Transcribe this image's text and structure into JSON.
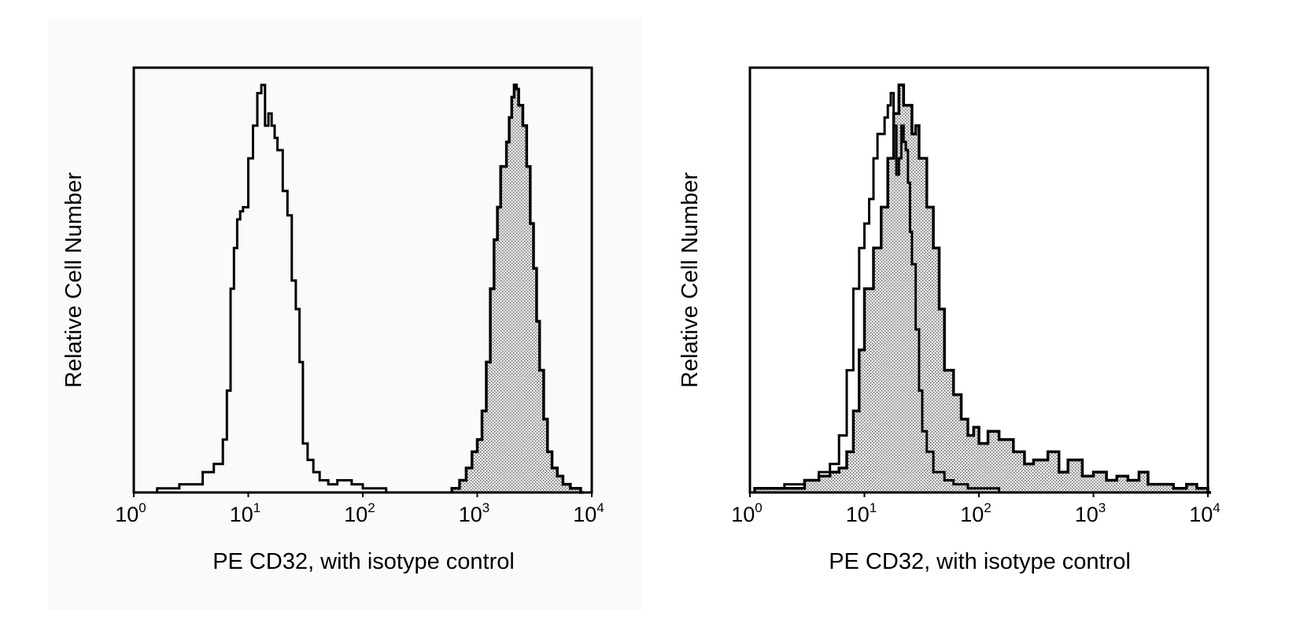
{
  "chart_data": [
    {
      "type": "area",
      "subtype": "flow-cytometry-histogram-overlay",
      "xlabel": "PE CD32, with isotype control",
      "ylabel": "Relative Cell Number",
      "x_scale": "log",
      "xlim": [
        1,
        10000
      ],
      "x_ticks": [
        {
          "base": "10",
          "exp": "0"
        },
        {
          "base": "10",
          "exp": "1"
        },
        {
          "base": "10",
          "exp": "2"
        },
        {
          "base": "10",
          "exp": "3"
        },
        {
          "base": "10",
          "exp": "4"
        }
      ],
      "ylim": [
        0,
        1
      ],
      "y_ticks_labeled": false,
      "grid": false,
      "legend": "none",
      "series": [
        {
          "role": "isotype control (open outline)",
          "style": "outline",
          "x": [
            1.6,
            2.5,
            3.2,
            4,
            5,
            6,
            6.5,
            7,
            7.5,
            8,
            8.5,
            9,
            10,
            11,
            12,
            13,
            14,
            15,
            16,
            17,
            18,
            20,
            22,
            24,
            26,
            28,
            30,
            33,
            37,
            42,
            50,
            60,
            70,
            80,
            100,
            130,
            160
          ],
          "y": [
            0.01,
            0.02,
            0.02,
            0.05,
            0.07,
            0.13,
            0.25,
            0.5,
            0.6,
            0.67,
            0.69,
            0.7,
            0.82,
            0.9,
            0.98,
            1.0,
            0.9,
            0.93,
            0.9,
            0.87,
            0.84,
            0.74,
            0.68,
            0.52,
            0.45,
            0.32,
            0.12,
            0.08,
            0.05,
            0.03,
            0.02,
            0.03,
            0.03,
            0.02,
            0.01,
            0.01,
            0.0
          ]
        },
        {
          "role": "PE CD32 stained (shaded)",
          "style": "filled",
          "x": [
            600,
            700,
            800,
            900,
            1000,
            1100,
            1200,
            1300,
            1400,
            1500,
            1600,
            1800,
            1900,
            2000,
            2100,
            2200,
            2300,
            2500,
            2700,
            2900,
            3100,
            3300,
            3500,
            3800,
            4100,
            4500,
            5000,
            5600,
            6500,
            8000
          ],
          "y": [
            0.01,
            0.03,
            0.06,
            0.1,
            0.13,
            0.2,
            0.32,
            0.5,
            0.62,
            0.7,
            0.8,
            0.86,
            0.92,
            0.97,
            1.0,
            0.99,
            0.95,
            0.9,
            0.8,
            0.66,
            0.55,
            0.42,
            0.3,
            0.18,
            0.1,
            0.06,
            0.04,
            0.02,
            0.01,
            0.0
          ]
        }
      ]
    },
    {
      "type": "area",
      "subtype": "flow-cytometry-histogram-overlay",
      "xlabel": "PE CD32, with isotype control",
      "ylabel": "Relative Cell Number",
      "x_scale": "log",
      "xlim": [
        1,
        10000
      ],
      "x_ticks": [
        {
          "base": "10",
          "exp": "0"
        },
        {
          "base": "10",
          "exp": "1"
        },
        {
          "base": "10",
          "exp": "2"
        },
        {
          "base": "10",
          "exp": "3"
        },
        {
          "base": "10",
          "exp": "4"
        }
      ],
      "ylim": [
        0,
        1
      ],
      "y_ticks_labeled": false,
      "grid": false,
      "legend": "none",
      "series": [
        {
          "role": "isotype control (open outline)",
          "style": "outline",
          "x": [
            1.1,
            2,
            3,
            4,
            5,
            6,
            7,
            8,
            9,
            10,
            11,
            12,
            13,
            14,
            15,
            16,
            17,
            18,
            19,
            20,
            21,
            22,
            23,
            24,
            25,
            26,
            28,
            30,
            32,
            35,
            40,
            50,
            60,
            80,
            100,
            150
          ],
          "y": [
            0.01,
            0.02,
            0.03,
            0.05,
            0.07,
            0.14,
            0.3,
            0.5,
            0.6,
            0.66,
            0.72,
            0.82,
            0.88,
            0.88,
            0.92,
            0.95,
            0.98,
            0.9,
            0.78,
            0.82,
            0.9,
            0.86,
            0.84,
            0.76,
            0.64,
            0.56,
            0.4,
            0.25,
            0.15,
            0.1,
            0.05,
            0.03,
            0.02,
            0.01,
            0.01,
            0.0
          ]
        },
        {
          "role": "PE CD32 stained (shaded)",
          "style": "filled",
          "x": [
            1.1,
            2,
            3,
            4,
            5,
            6,
            7,
            8,
            9,
            10,
            12,
            14,
            16,
            18,
            20,
            22,
            24,
            26,
            28,
            30,
            35,
            40,
            45,
            50,
            60,
            70,
            80,
            90,
            100,
            120,
            150,
            200,
            250,
            300,
            400,
            500,
            600,
            800,
            1000,
            1300,
            1600,
            2000,
            2500,
            3000,
            4000,
            5000,
            6500,
            8000,
            10000
          ],
          "y": [
            0.01,
            0.01,
            0.03,
            0.04,
            0.05,
            0.06,
            0.1,
            0.2,
            0.35,
            0.5,
            0.6,
            0.7,
            0.82,
            0.93,
            1.0,
            0.95,
            0.95,
            0.88,
            0.9,
            0.82,
            0.7,
            0.6,
            0.45,
            0.3,
            0.24,
            0.18,
            0.14,
            0.16,
            0.12,
            0.15,
            0.13,
            0.1,
            0.07,
            0.08,
            0.1,
            0.05,
            0.08,
            0.04,
            0.05,
            0.03,
            0.04,
            0.03,
            0.05,
            0.02,
            0.02,
            0.01,
            0.02,
            0.01,
            0.0
          ]
        }
      ]
    }
  ]
}
